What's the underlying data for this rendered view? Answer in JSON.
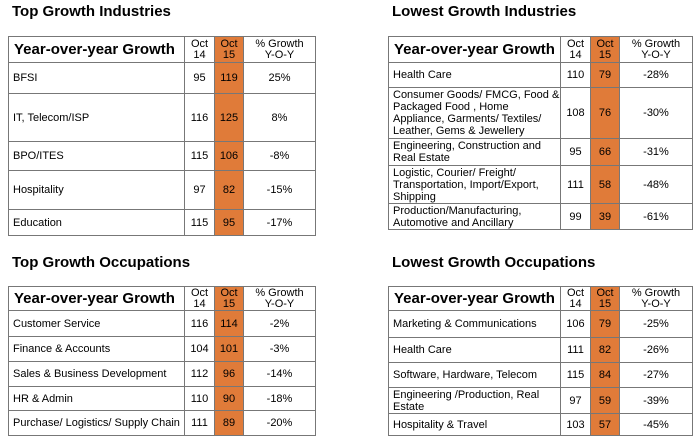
{
  "panels": {
    "top_industries": {
      "title": "Top Growth Industries",
      "header": {
        "yoy": "Year-over-year Growth",
        "oct14": "Oct\n14",
        "oct15": "Oct\n15",
        "pct": "% Growth\nY-O-Y"
      },
      "rows": [
        {
          "label": "BFSI",
          "oct14": "95",
          "oct15": "119",
          "pct": "25%"
        },
        {
          "label": "IT, Telecom/ISP",
          "oct14": "116",
          "oct15": "125",
          "pct": "8%"
        },
        {
          "label": "BPO/ITES",
          "oct14": "115",
          "oct15": "106",
          "pct": "-8%"
        },
        {
          "label": "Hospitality",
          "oct14": "97",
          "oct15": "82",
          "pct": "-15%"
        },
        {
          "label": "Education",
          "oct14": "115",
          "oct15": "95",
          "pct": "-17%"
        }
      ]
    },
    "lowest_industries": {
      "title": "Lowest Growth Industries",
      "header": {
        "yoy": "Year-over-year Growth",
        "oct14": "Oct\n14",
        "oct15": "Oct\n15",
        "pct": "% Growth\nY-O-Y"
      },
      "rows": [
        {
          "label": "Health Care",
          "oct14": "110",
          "oct15": "79",
          "pct": "-28%"
        },
        {
          "label": "Consumer Goods/ FMCG, Food & Packaged Food , Home Appliance, Garments/ Textiles/ Leather, Gems & Jewellery",
          "oct14": "108",
          "oct15": "76",
          "pct": "-30%"
        },
        {
          "label": "Engineering, Construction and Real Estate",
          "oct14": "95",
          "oct15": "66",
          "pct": "-31%"
        },
        {
          "label": "Logistic, Courier/ Freight/ Transportation, Import/Export, Shipping",
          "oct14": "111",
          "oct15": "58",
          "pct": "-48%"
        },
        {
          "label": "Production/Manufacturing, Automotive and Ancillary",
          "oct14": "99",
          "oct15": "39",
          "pct": "-61%"
        }
      ]
    },
    "top_occupations": {
      "title": "Top Growth Occupations",
      "header": {
        "yoy": "Year-over-year Growth",
        "oct14": "Oct\n14",
        "oct15": "Oct\n15",
        "pct": "% Growth\nY-O-Y"
      },
      "rows": [
        {
          "label": "Customer Service",
          "oct14": "116",
          "oct15": "114",
          "pct": "-2%"
        },
        {
          "label": "Finance & Accounts",
          "oct14": "104",
          "oct15": "101",
          "pct": "-3%"
        },
        {
          "label": "Sales & Business Development",
          "oct14": "112",
          "oct15": "96",
          "pct": "-14%"
        },
        {
          "label": "HR & Admin",
          "oct14": "110",
          "oct15": "90",
          "pct": "-18%"
        },
        {
          "label": "Purchase/ Logistics/ Supply Chain",
          "oct14": "111",
          "oct15": "89",
          "pct": "-20%"
        }
      ]
    },
    "lowest_occupations": {
      "title": "Lowest Growth Occupations",
      "header": {
        "yoy": "Year-over-year Growth",
        "oct14": "Oct\n14",
        "oct15": "Oct\n15",
        "pct": "% Growth\nY-O-Y"
      },
      "rows": [
        {
          "label": "Marketing & Communications",
          "oct14": "106",
          "oct15": "79",
          "pct": "-25%"
        },
        {
          "label": "Health Care",
          "oct14": "111",
          "oct15": "82",
          "pct": "-26%"
        },
        {
          "label": "Software, Hardware, Telecom",
          "oct14": "115",
          "oct15": "84",
          "pct": "-27%"
        },
        {
          "label": "Engineering /Production, Real Estate",
          "oct14": "97",
          "oct15": "59",
          "pct": "-39%"
        },
        {
          "label": "Hospitality & Travel",
          "oct14": "103",
          "oct15": "57",
          "pct": "-45%"
        }
      ]
    }
  },
  "colors": {
    "highlight": "#e07b39",
    "border": "#777777"
  }
}
